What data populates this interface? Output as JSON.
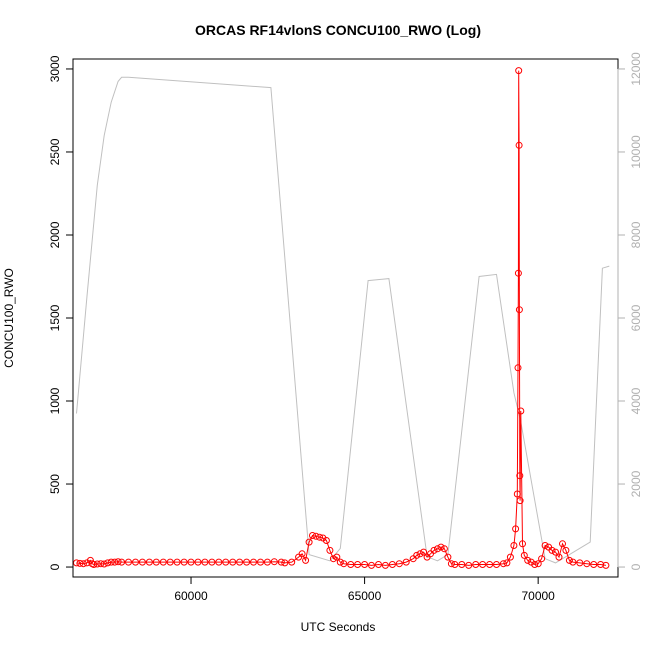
{
  "chart_data": {
    "type": "line",
    "title": "ORCAS RF14vlonS CONCU100_RWO (Log)",
    "xlabel": "UTC Seconds",
    "ylabel": "CONCU100_RWO",
    "y2label": "",
    "xlim": [
      56600,
      72300
    ],
    "ylim": [
      -60,
      3060
    ],
    "y2lim": [
      -240,
      12240
    ],
    "x_ticks": [
      60000,
      65000,
      70000
    ],
    "x_tick_labels": [
      "60000",
      "65000",
      "70000"
    ],
    "y_ticks": [
      0,
      500,
      1000,
      1500,
      2000,
      2500,
      3000
    ],
    "y_tick_labels": [
      "0",
      "500",
      "1000",
      "1500",
      "2000",
      "2500",
      "3000"
    ],
    "y2_ticks": [
      0,
      2000,
      4000,
      6000,
      8000,
      10000,
      12000
    ],
    "y2_tick_labels": [
      "0",
      "2000",
      "4000",
      "6000",
      "8000",
      "10000",
      "12000"
    ],
    "grid": false,
    "series": [
      {
        "axis": "left",
        "color": "#ff0000",
        "marker": "open-circle",
        "x": [
          56700,
          56800,
          56900,
          57000,
          57100,
          57150,
          57200,
          57300,
          57400,
          57500,
          57600,
          57700,
          57800,
          57900,
          58000,
          58200,
          58400,
          58600,
          58800,
          59000,
          59200,
          59400,
          59600,
          59800,
          60000,
          60200,
          60400,
          60600,
          60800,
          61000,
          61200,
          61400,
          61600,
          61800,
          62000,
          62200,
          62400,
          62600,
          62700,
          62900,
          63100,
          63200,
          63300,
          63400,
          63500,
          63600,
          63700,
          63800,
          63900,
          64000,
          64100,
          64200,
          64300,
          64400,
          64600,
          64800,
          65000,
          65200,
          65400,
          65600,
          65800,
          66000,
          66200,
          66400,
          66500,
          66600,
          66700,
          66800,
          66900,
          67000,
          67100,
          67200,
          67300,
          67400,
          67500,
          67600,
          67800,
          68000,
          68200,
          68400,
          68600,
          68800,
          69000,
          69100,
          69200,
          69300,
          69350,
          69400,
          69420,
          69430,
          69440,
          69450,
          69460,
          69470,
          69480,
          69500,
          69550,
          69600,
          69700,
          69800,
          69900,
          70000,
          70100,
          70200,
          70300,
          70400,
          70500,
          70600,
          70700,
          70800,
          70900,
          71000,
          71200,
          71400,
          71600,
          71800,
          71950
        ],
        "y": [
          25,
          22,
          20,
          25,
          40,
          20,
          15,
          18,
          20,
          18,
          25,
          30,
          30,
          32,
          30,
          30,
          30,
          30,
          30,
          30,
          30,
          30,
          30,
          30,
          30,
          30,
          30,
          30,
          30,
          30,
          30,
          30,
          30,
          30,
          30,
          30,
          32,
          30,
          25,
          30,
          60,
          80,
          40,
          150,
          190,
          185,
          180,
          175,
          160,
          100,
          50,
          60,
          30,
          20,
          15,
          15,
          15,
          10,
          15,
          10,
          15,
          20,
          30,
          50,
          70,
          80,
          90,
          60,
          80,
          100,
          110,
          120,
          110,
          60,
          20,
          15,
          15,
          10,
          15,
          15,
          15,
          15,
          20,
          25,
          60,
          130,
          230,
          440,
          1200,
          1770,
          2990,
          2540,
          1550,
          550,
          400,
          940,
          140,
          70,
          40,
          30,
          15,
          20,
          50,
          130,
          120,
          100,
          90,
          60,
          140,
          100,
          40,
          30,
          25,
          20,
          15,
          15,
          10
        ]
      },
      {
        "axis": "right",
        "color": "#c0c0c0",
        "marker": "none",
        "x": [
          56700,
          57000,
          57300,
          57500,
          57700,
          57900,
          58000,
          58200,
          62300,
          63400,
          64000,
          64300,
          65100,
          65700,
          66800,
          67100,
          67400,
          68300,
          68800,
          69300,
          69500,
          70200,
          70500,
          71500,
          71850,
          72050
        ],
        "y": [
          3700,
          6500,
          9200,
          10400,
          11200,
          11700,
          11800,
          11800,
          11550,
          300,
          150,
          450,
          6900,
          6950,
          250,
          150,
          300,
          7000,
          7050,
          4200,
          3500,
          200,
          100,
          600,
          7200,
          7250
        ]
      }
    ]
  }
}
